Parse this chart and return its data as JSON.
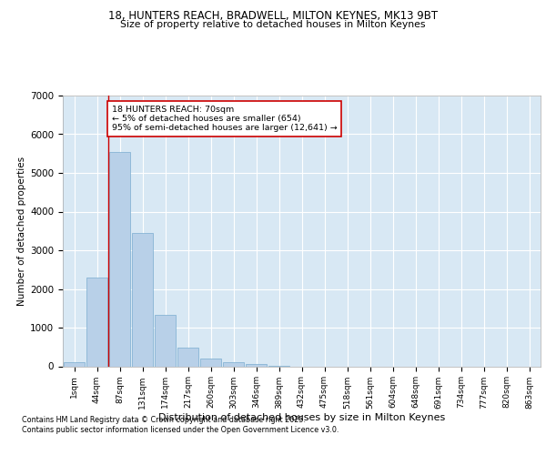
{
  "title1": "18, HUNTERS REACH, BRADWELL, MILTON KEYNES, MK13 9BT",
  "title2": "Size of property relative to detached houses in Milton Keynes",
  "xlabel": "Distribution of detached houses by size in Milton Keynes",
  "ylabel": "Number of detached properties",
  "bar_color": "#b8d0e8",
  "bar_edge_color": "#7aadd0",
  "background_color": "#d8e8f4",
  "grid_color": "#ffffff",
  "categories": [
    "1sqm",
    "44sqm",
    "87sqm",
    "131sqm",
    "174sqm",
    "217sqm",
    "260sqm",
    "303sqm",
    "346sqm",
    "389sqm",
    "432sqm",
    "475sqm",
    "518sqm",
    "561sqm",
    "604sqm",
    "648sqm",
    "691sqm",
    "734sqm",
    "777sqm",
    "820sqm",
    "863sqm"
  ],
  "values": [
    100,
    2300,
    5550,
    3450,
    1320,
    490,
    200,
    100,
    50,
    5,
    0,
    0,
    0,
    0,
    0,
    0,
    0,
    0,
    0,
    0,
    0
  ],
  "property_label": "18 HUNTERS REACH: 70sqm",
  "annotation_line1": "← 5% of detached houses are smaller (654)",
  "annotation_line2": "95% of semi-detached houses are larger (12,641) →",
  "vline_x": 1.5,
  "ylim": [
    0,
    7000
  ],
  "yticks": [
    0,
    1000,
    2000,
    3000,
    4000,
    5000,
    6000,
    7000
  ],
  "annotation_box_color": "#ffffff",
  "annotation_box_edge": "#cc0000",
  "vline_color": "#cc0000",
  "footnote1": "Contains HM Land Registry data © Crown copyright and database right 2025.",
  "footnote2": "Contains public sector information licensed under the Open Government Licence v3.0."
}
